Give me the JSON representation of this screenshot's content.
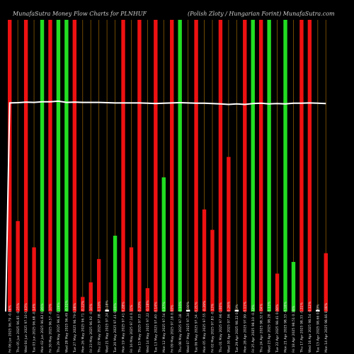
{
  "chart_data": {
    "type": "bar",
    "title_left": "MunafaSutra Money Flow Charts for PLNHUF",
    "title_right": "(Polish Zloty / Hungarian Forint) MunafaSutra.com",
    "ylim": [
      0,
      100
    ],
    "grid": "vertical",
    "colors": {
      "up": "#22dd22",
      "down": "#ee1111",
      "neutral": "#ffffff",
      "line": "#ffffff",
      "grid": "#8a5a00"
    },
    "categories": [
      "Fri 06 Jun 2025 96.79 -0.06%",
      "Thu 05 Jun 2025 96.85 -0.25%",
      "Wed 04 Jun 2025 97.10 0.43%",
      "Tue 03 Jun 2025 96.68 -0.14%",
      "Mon 02 Jun 2025 96.82 0.26%",
      "Fri 30 May 2025 96.57 -0.10%",
      "Thu 29 May 2025 96.67 0.19%",
      "Wed 28 May 2025 96.49 -0.31%",
      "Tue 27 May 2025 96.79 0.08%",
      "Mon 26 May 2025 96.71 -0.22%",
      "Fri 23 May 2025 96.92 -0.16%",
      "Thu 22 May 2025 97.08 -0.16%",
      "Wed 21 May 2025 97.24 -0.18%",
      "Tue 20 May 2025 97.41 0.00%",
      "Mon 19 May 2025 97.41 0.28%",
      "Fri 16 May 2025 97.14 0.11%",
      "Thu 15 May 2025 97.03 -0.20%",
      "Wed 14 May 2025 97.22 -0.18%",
      "Tue 13 May 2025 97.40 -0.14%",
      "Mon 12 May 2025 97.54 0.37%",
      "Fri 09 May 2025 97.18 0.00%",
      "Thu 08 May 2025 97.18 -0.16%",
      "Wed 07 May 2025 97.34 0.00%",
      "Tue 06 May 2025 97.34 -0.21%",
      "Mon 05 May 2025 97.55 -0.29%",
      "Fri 02 May 2025 97.83 -0.13%",
      "Thu 01 May 2025 97.96 0.00%",
      "Wed 30 Apr 2025 97.96 -0.26%",
      "Tue 29 Apr 2025 98.22 0.23%",
      "Mon 28 Apr 2025 97.99 -0.11%",
      "Fri 25 Apr 2025 98.10 -0.22%",
      "Thu 24 Apr 2025 98.32 0.04%",
      "Wed 23 Apr 2025 98.28 -0.13%",
      "Tue 22 Apr 2025 98.41 0.08%",
      "Mon 21 Apr 2025 98.33 -0.18%",
      "Fri 18 Apr 2025 98.51 0.18%",
      "Thu 17 Apr 2025 98.33 -0.21%",
      "Wed 16 Apr 2025 98.54 -0.12%",
      "Tue 15 Apr 2025 98.66 0.00%",
      "Mon 14 Apr 2025 98.66 0.08%"
    ],
    "values": [
      100,
      31,
      100,
      22,
      100,
      100,
      100,
      100,
      100,
      5,
      10,
      18,
      0.6,
      26,
      100,
      22,
      100,
      8,
      100,
      46,
      100,
      100,
      0.6,
      100,
      35,
      28,
      100,
      53,
      0.6,
      100,
      100,
      100,
      100,
      13,
      100,
      17,
      100,
      100,
      0.6,
      20
    ],
    "directions": [
      "down",
      "down",
      "down",
      "down",
      "up",
      "down",
      "up",
      "up",
      "down",
      "down",
      "down",
      "down",
      "neutral",
      "up",
      "down",
      "down",
      "down",
      "down",
      "down",
      "up",
      "down",
      "up",
      "neutral",
      "down",
      "down",
      "down",
      "down",
      "down",
      "neutral",
      "down",
      "up",
      "down",
      "up",
      "down",
      "up",
      "up",
      "down",
      "down",
      "neutral",
      "down"
    ],
    "line_values": [
      71.5,
      71.6,
      71.8,
      71.7,
      71.9,
      71.9,
      72.1,
      71.7,
      71.8,
      71.7,
      71.7,
      71.7,
      71.6,
      71.5,
      71.5,
      71.5,
      71.5,
      71.4,
      71.3,
      71.4,
      71.5,
      71.6,
      71.5,
      71.4,
      71.4,
      71.3,
      71.2,
      71.0,
      71.2,
      71.0,
      71.3,
      71.4,
      71.2,
      71.3,
      71.2,
      71.4,
      71.4,
      71.5,
      71.4,
      71.3
    ]
  }
}
